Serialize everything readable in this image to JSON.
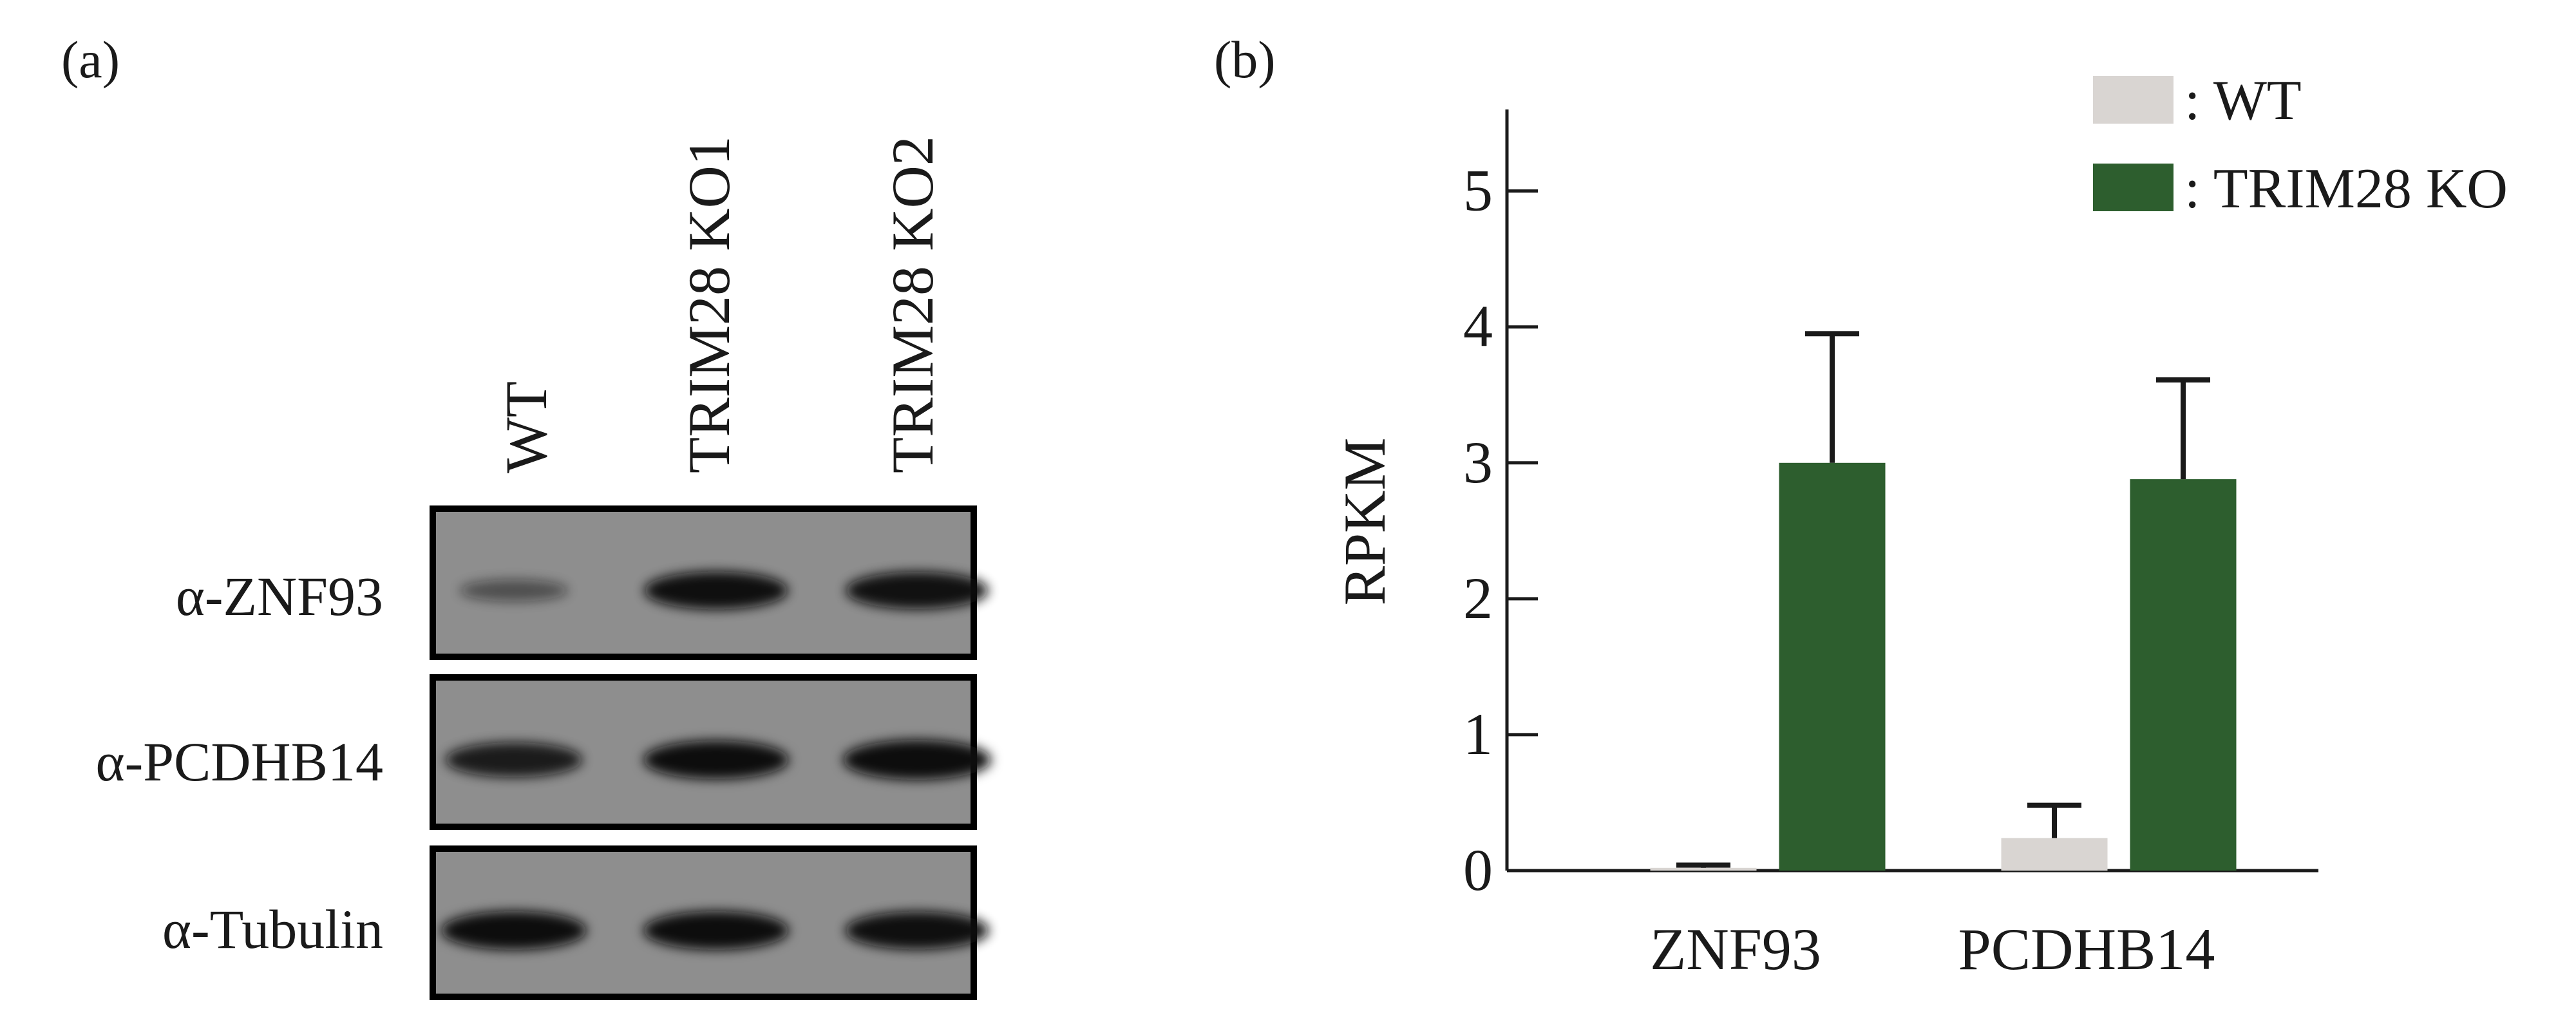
{
  "figure": {
    "panel_a": {
      "label": "(a)",
      "lanes": [
        "WT",
        "TRIM28 KO1",
        "TRIM28 KO2"
      ],
      "blots": [
        {
          "label": "α-ZNF93",
          "band_intensity": [
            0.3,
            0.92,
            0.9
          ]
        },
        {
          "label": "α-PCDHB14",
          "band_intensity": [
            0.8,
            0.95,
            1.0
          ]
        },
        {
          "label": "α-Tubulin",
          "band_intensity": [
            0.95,
            0.95,
            0.92
          ]
        }
      ]
    },
    "panel_b": {
      "label": "(b)"
    }
  },
  "colors": {
    "wt": "#d9d5d2",
    "ko": "#2d5e2e",
    "axis": "#1a1a1a",
    "blot_bg": "#8e8e8e",
    "band": "#111111"
  },
  "chart_data": {
    "type": "bar",
    "categories": [
      "ZNF93",
      "PCDHB14"
    ],
    "series": [
      {
        "name": ": WT",
        "values": [
          0.02,
          0.24
        ],
        "errors": [
          0.02,
          0.24
        ],
        "color": "#d9d5d2"
      },
      {
        "name": ": TRIM28 KO",
        "values": [
          3.0,
          2.88
        ],
        "errors": [
          0.95,
          0.73
        ],
        "color": "#2d5e2e"
      }
    ],
    "ylabel": "RPKM",
    "xlabel": "",
    "ylim": [
      0,
      5.6
    ],
    "yticks": [
      0,
      1,
      2,
      3,
      4,
      5
    ],
    "legend_position": "top-right"
  }
}
